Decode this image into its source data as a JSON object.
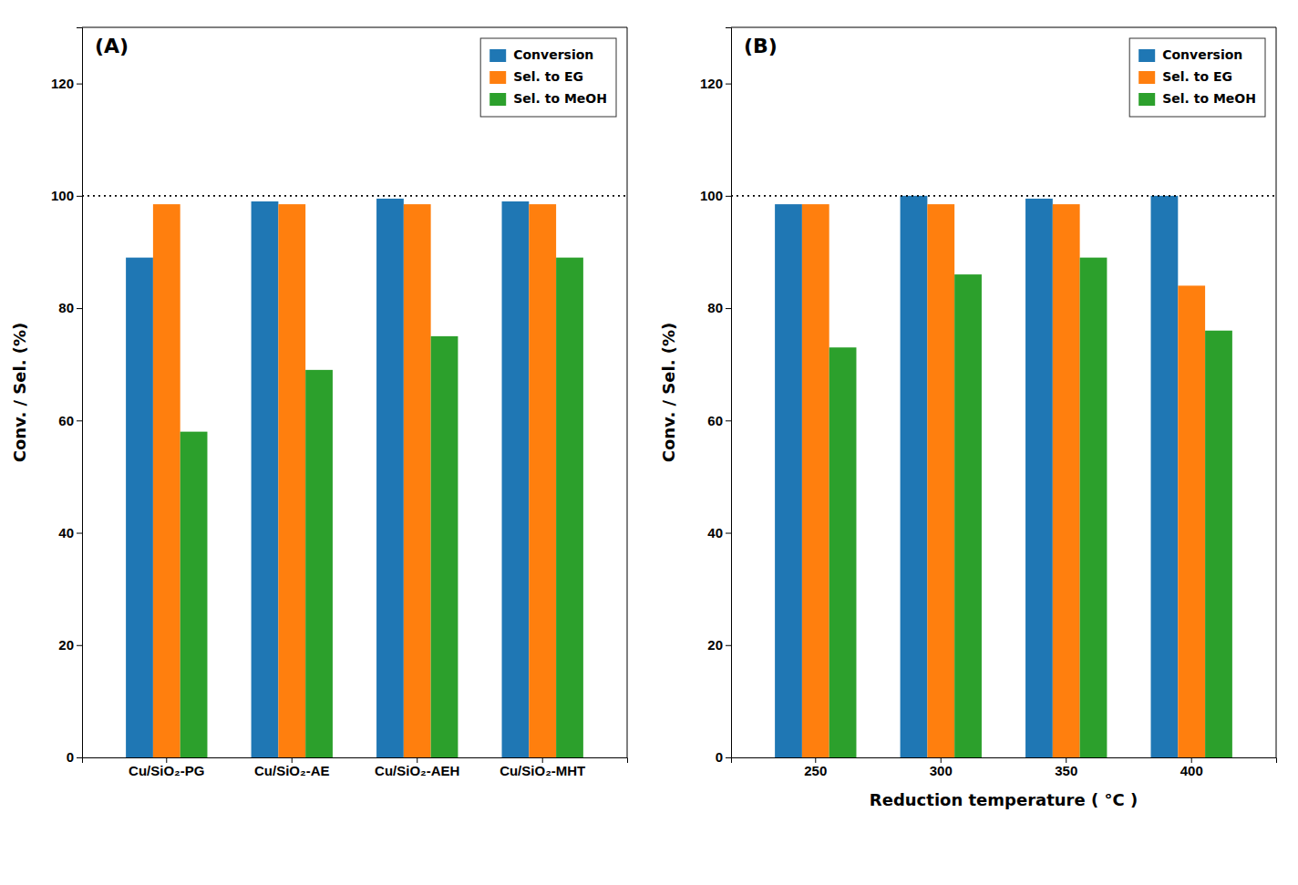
{
  "chart_data": [
    {
      "type": "bar",
      "title": "(A)",
      "categories": [
        "Cu/SiO₂-PG",
        "Cu/SiO₂-AE",
        "Cu/SiO₂-AEH",
        "Cu/SiO₂-MHT"
      ],
      "series": [
        {
          "name": "Conversion",
          "values": [
            89,
            99,
            99.5,
            99
          ]
        },
        {
          "name": "Sel. to EG",
          "values": [
            98.5,
            98.5,
            98.5,
            98.5
          ]
        },
        {
          "name": "Sel. to MeOH",
          "values": [
            58,
            69,
            75,
            89
          ]
        }
      ],
      "y_label": "Conv. / Sel. (%)",
      "ylim": [
        0,
        130
      ],
      "yticks": [
        0,
        20,
        40,
        60,
        80,
        100,
        120
      ],
      "reference_line": {
        "y": 100,
        "line_style": "dotted"
      },
      "grid": false,
      "legend": "upper right"
    },
    {
      "type": "bar",
      "title": "(B)",
      "categories": [
        "250",
        "300",
        "350",
        "400"
      ],
      "series": [
        {
          "name": "Conversion",
          "values": [
            98.5,
            100,
            99.5,
            100
          ]
        },
        {
          "name": "Sel. to EG",
          "values": [
            98.5,
            98.5,
            98.5,
            84
          ]
        },
        {
          "name": "Sel. to MeOH",
          "values": [
            73,
            86,
            89,
            76
          ]
        }
      ],
      "x_label": "Reduction temperature ( °C )",
      "y_label": "Conv. / Sel. (%)",
      "ylim": [
        0,
        130
      ],
      "yticks": [
        0,
        20,
        40,
        60,
        80,
        100,
        120
      ],
      "reference_line": {
        "y": 100,
        "line_style": "dotted"
      },
      "grid": false,
      "legend": "upper right"
    }
  ]
}
